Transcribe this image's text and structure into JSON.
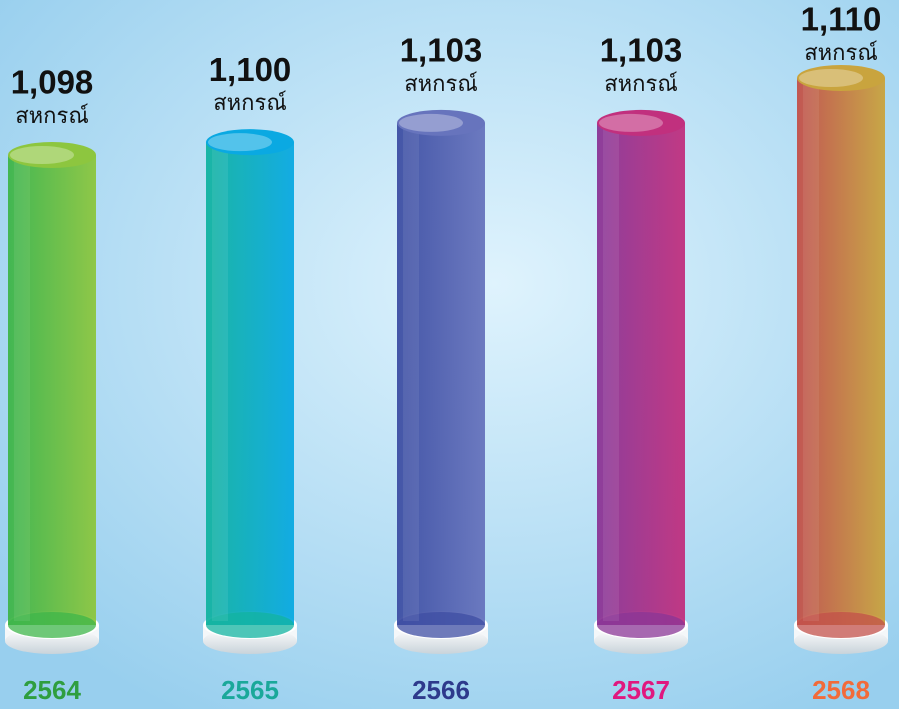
{
  "chart_data": {
    "type": "bar",
    "categories": [
      "2564",
      "2565",
      "2566",
      "2567",
      "2568"
    ],
    "values": [
      1098,
      1100,
      1103,
      1103,
      1110
    ],
    "value_labels": [
      "1,098",
      "1,100",
      "1,103",
      "1,103",
      "1,110"
    ],
    "unit": "สหกรณ์",
    "colors": [
      "#3db54a",
      "#12b3a0",
      "#3d4ea3",
      "#8a3596",
      "#c2504a"
    ],
    "colors_light": [
      "#8dc63f",
      "#0aa9e2",
      "#6774bd",
      "#c1307e",
      "#c9a43e"
    ],
    "label_colors": [
      "#2f9e3f",
      "#1aa89a",
      "#2e3a8c",
      "#e0187f",
      "#f26b3a"
    ]
  }
}
